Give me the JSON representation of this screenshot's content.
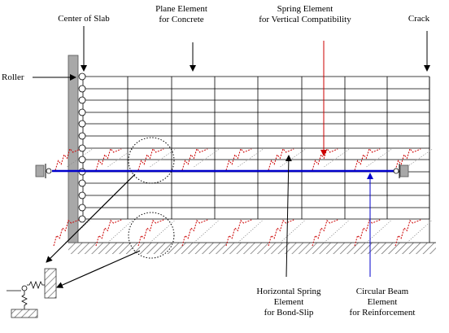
{
  "labels": {
    "center_of_slab": "Center of Slab",
    "plane_element": [
      "Plane Element",
      "for Concrete"
    ],
    "spring_element": [
      "Spring Element",
      "for Vertical Compatibility"
    ],
    "crack": "Crack",
    "roller": "Roller",
    "horizontal_spring": [
      "Horizontal Spring",
      "Element",
      "for Bond-Slip"
    ],
    "circular_beam": [
      "Circular Beam",
      "Element",
      "for Reinforcement"
    ]
  },
  "colors": {
    "mesh": "#000000",
    "reinforcement": "#0000cc",
    "spring": "#cc0000",
    "support_fill": "#a8a8a8",
    "ground_hatch": "#606060"
  },
  "icons": [
    "roller-icon",
    "spring-icon",
    "fixed-support-icon"
  ]
}
